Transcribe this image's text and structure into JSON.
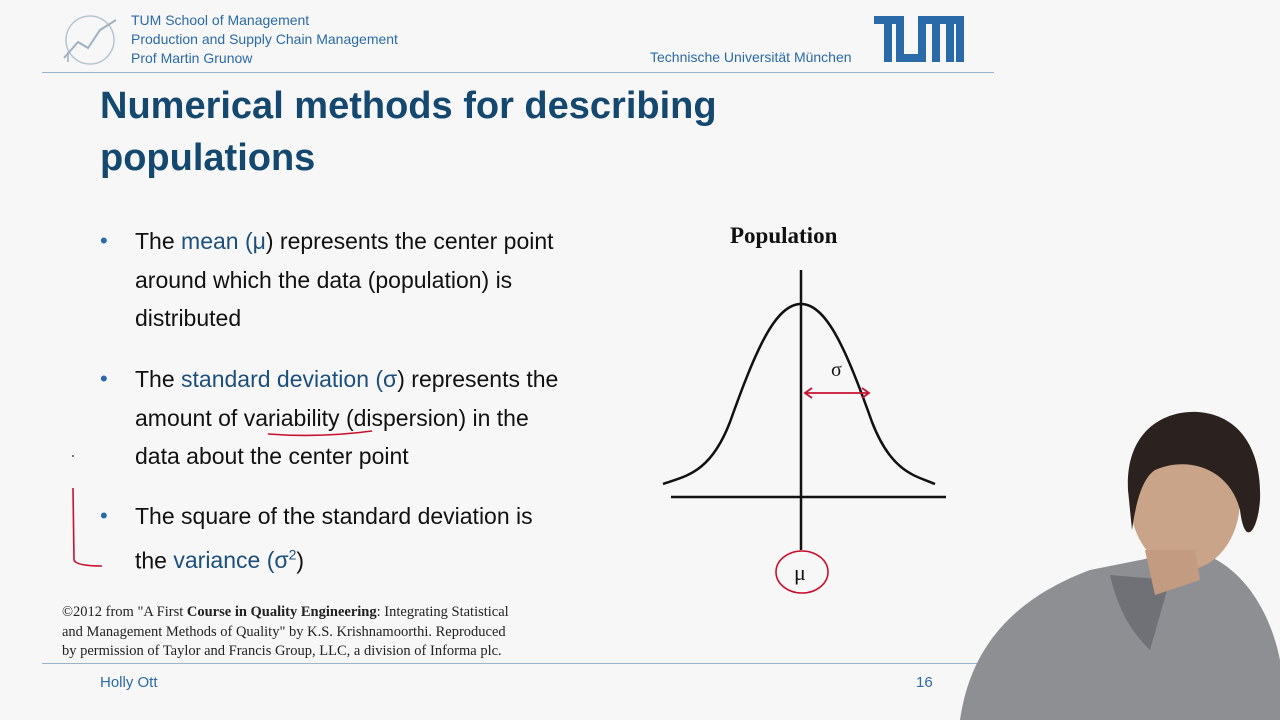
{
  "header": {
    "school": "TUM School of Management",
    "chair": "Production and Supply Chain Management",
    "professor": "Prof Martin Grunow",
    "university": "Technische Universität München",
    "logo_text": "TUM"
  },
  "slide": {
    "title_line1": "Numerical methods for describing",
    "title_line2": "populations",
    "bullets": [
      {
        "line1_pre": "The ",
        "line1_hl": "mean (μ",
        "line1_post": ") represents the center point",
        "line2": "around which the data (population) is",
        "line3": "distributed"
      },
      {
        "line1_pre": "The ",
        "line1_hl": "standard deviation (σ",
        "line1_post": ") represents the",
        "line2_pre": "amount of ",
        "line2_ul": "variability",
        "line2_post": " (dispersion) in the",
        "line3": "data about the center point"
      },
      {
        "line1": "The square of the standard deviation is",
        "line2_pre": "the ",
        "line2_hl": "variance (σ",
        "line2_sup": "2",
        "line2_post": ")"
      }
    ],
    "figure": {
      "title": "Population",
      "sigma_label": "σ",
      "mu_label": "μ"
    },
    "credit": {
      "line1_pre": "©2012 from \"A First ",
      "line1_bold": "Course in Quality Engineering",
      "line1_post": ": Integrating Statistical",
      "line2": "and Management Methods of Quality\" by K.S. Krishnamoorthi. Reproduced",
      "line3": "by permission of Taylor and Francis Group, LLC, a division of Informa plc."
    }
  },
  "footer": {
    "presenter": "Holly Ott",
    "page_number": "16"
  },
  "colors": {
    "tum_blue": "#2a6aa8",
    "title_blue": "#14486f",
    "annotation_red": "#c8102e"
  }
}
